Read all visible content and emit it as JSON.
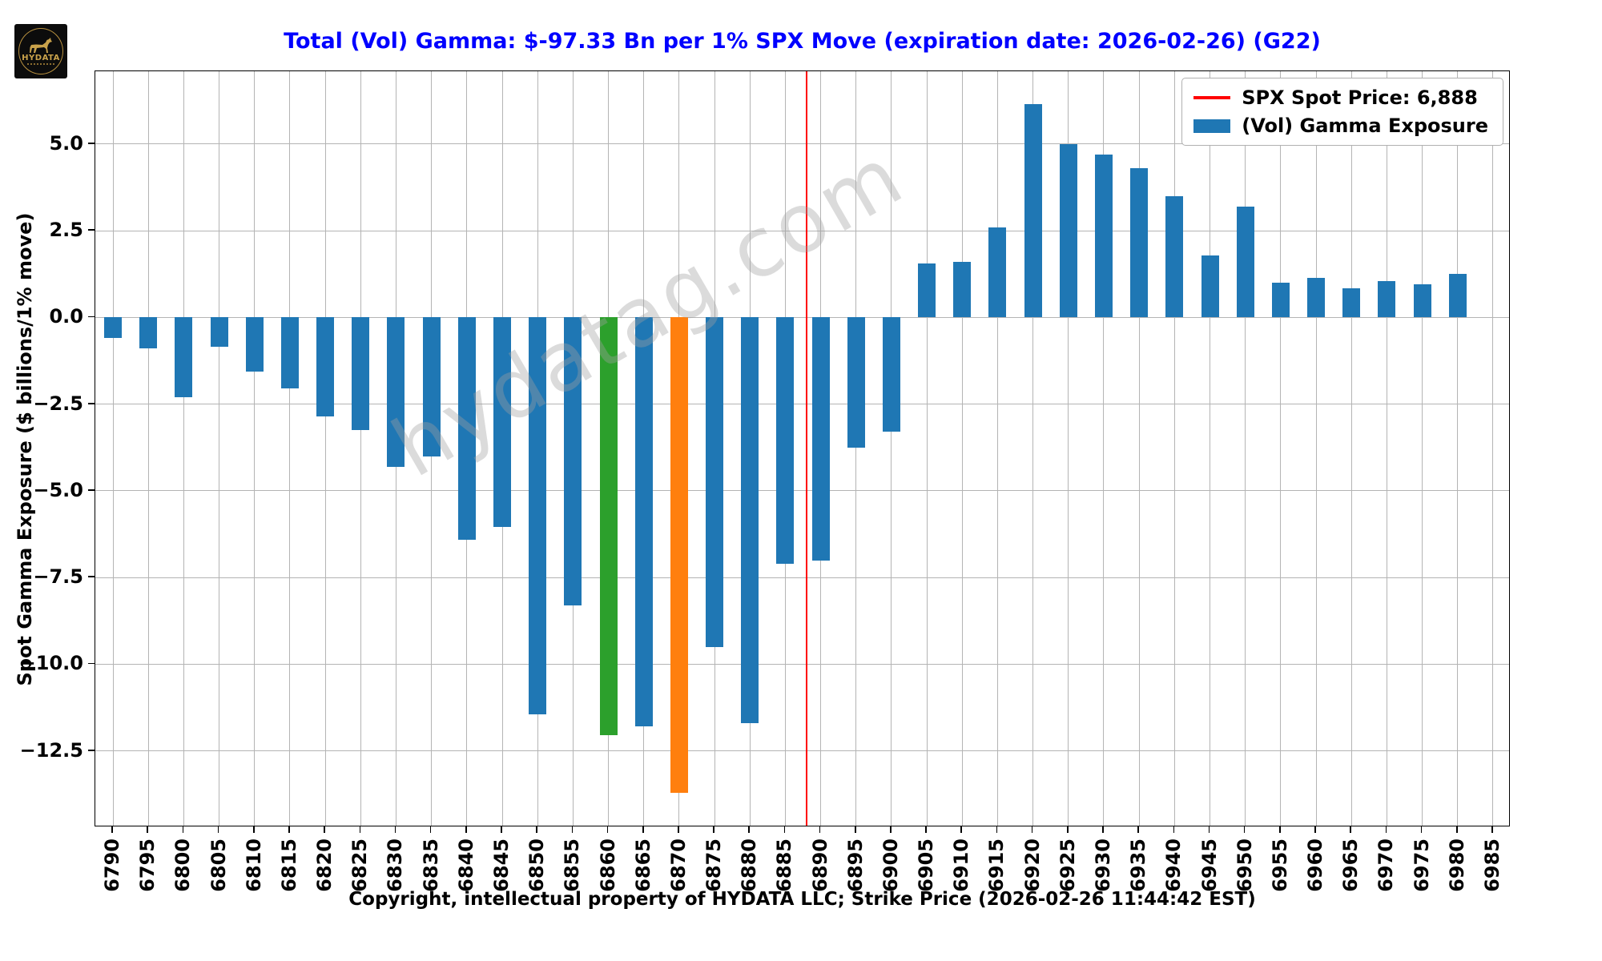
{
  "logo": {
    "brand": "HYDATA"
  },
  "title": "Total (Vol) Gamma: $-97.33 Bn per 1% SPX Move (expiration date: 2026-02-26) (G22)",
  "watermark": "hydatag.com",
  "footer": "Copyright, intellectual property of HYDATA LLC; Strike Price (2026-02-26 11:44:42 EST)",
  "legend": {
    "spot_label": "SPX Spot Price: 6,888",
    "gamma_label": "(Vol) Gamma Exposure"
  },
  "colors": {
    "title": "#0000ff",
    "bar_default": "#1f77b4",
    "bar_highlight_green": "#2ca02c",
    "bar_highlight_orange": "#ff7f0e",
    "spot_line": "#ff0000",
    "grid": "#b4b4b4"
  },
  "chart_data": {
    "type": "bar",
    "title": "Total (Vol) Gamma: $-97.33 Bn per 1% SPX Move (expiration date: 2026-02-26) (G22)",
    "ylabel": "Spot Gamma Exposure ($ billions/1% move)",
    "xlabel": "Strike Price",
    "categories": [
      6790,
      6795,
      6800,
      6805,
      6810,
      6815,
      6820,
      6825,
      6830,
      6835,
      6840,
      6845,
      6850,
      6855,
      6860,
      6865,
      6870,
      6875,
      6880,
      6885,
      6890,
      6895,
      6900,
      6905,
      6910,
      6915,
      6920,
      6925,
      6930,
      6935,
      6940,
      6945,
      6950,
      6955,
      6960,
      6965,
      6970,
      6975,
      6980,
      6985
    ],
    "values": [
      -0.6,
      -0.9,
      -2.3,
      -0.85,
      -1.55,
      -2.05,
      -2.85,
      -3.25,
      -4.3,
      -4.0,
      -6.4,
      -6.05,
      -11.45,
      -8.3,
      -12.05,
      -11.8,
      -13.7,
      -9.5,
      -11.7,
      -7.1,
      -7.0,
      -3.75,
      -3.3,
      1.55,
      1.6,
      2.6,
      6.15,
      5.0,
      4.7,
      4.3,
      3.5,
      1.8,
      3.2,
      1.0,
      1.15,
      0.85,
      1.05,
      0.95,
      1.25,
      0.0
    ],
    "bar_color": "#1f77b4",
    "highlight_bars": {
      "6860": "#2ca02c",
      "6870": "#ff7f0e"
    },
    "spot_price": 6888,
    "spot_price_label": "SPX Spot Price: 6,888",
    "spot_line_color": "#ff0000",
    "series_label": "(Vol) Gamma Exposure",
    "ytick_labels": [
      "5.0",
      "2.5",
      "0.0",
      "−2.5",
      "−5.0",
      "−7.5",
      "−10.0",
      "−12.5"
    ],
    "ytick_values": [
      5.0,
      2.5,
      0.0,
      -2.5,
      -5.0,
      -7.5,
      -10.0,
      -12.5
    ],
    "ylim": [
      -14.7,
      7.1
    ],
    "grid": true,
    "legend_position": "upper right"
  }
}
